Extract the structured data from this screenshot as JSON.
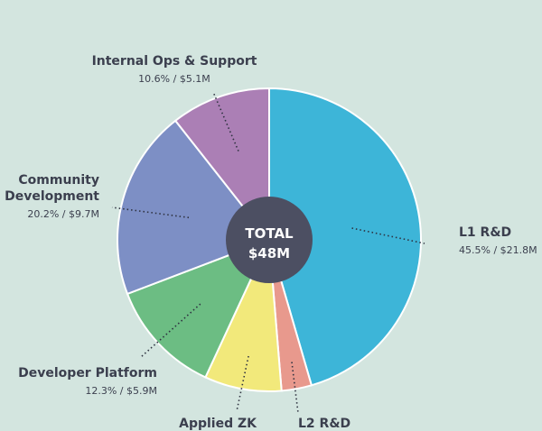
{
  "chart_data": {
    "type": "pie",
    "title": "",
    "total_label": "TOTAL",
    "total_value": "$48M",
    "slices": [
      {
        "name": "L1 R&D",
        "value_text": "45.5% / $21.8M",
        "percent": 45.5,
        "amount": 21.8,
        "color": "#3db5d8",
        "anchor": "start",
        "name_lines": [
          "L1 R&D"
        ]
      },
      {
        "name": "L2 R&D",
        "value_text": "",
        "percent": 3.2,
        "amount": 1.5,
        "color": "#e8998d",
        "anchor": "start",
        "name_lines": [
          "L2 R&D"
        ]
      },
      {
        "name": "Applied ZK",
        "value_text": "",
        "percent": 8.2,
        "amount": 3.9,
        "color": "#f2e97b",
        "anchor": "end",
        "name_lines": [
          "Applied ZK"
        ]
      },
      {
        "name": "Developer Platform",
        "value_text": "12.3% / $5.9M",
        "percent": 12.3,
        "amount": 5.9,
        "color": "#6cbd83",
        "anchor": "end",
        "name_lines": [
          "Developer Platform"
        ]
      },
      {
        "name": "Community Development",
        "value_text": "20.2% / $9.7M",
        "percent": 20.2,
        "amount": 9.7,
        "color": "#7d8fc5",
        "anchor": "end",
        "name_lines": [
          "Community",
          "Development"
        ]
      },
      {
        "name": "Internal Ops & Support",
        "value_text": "10.6% / $5.1M",
        "percent": 10.6,
        "amount": 5.1,
        "color": "#ab7fb5",
        "anchor": "middle",
        "name_lines": [
          "Internal Ops & Support"
        ]
      }
    ]
  }
}
